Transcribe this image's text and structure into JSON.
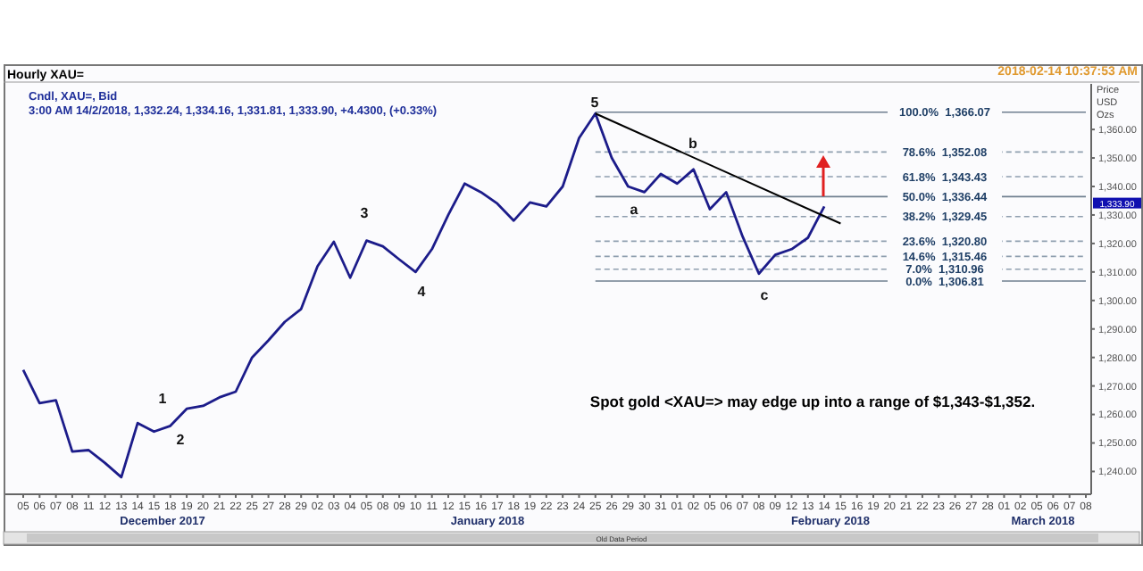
{
  "chart_data": {
    "type": "line",
    "title": "Hourly XAU=",
    "subtitle": "Cndl, XAU=, Bid",
    "ylabel": "Price USD Ozs",
    "annotations": [
      "3:00 AM 14/2/2018, 1,332.24, 1,334.16, 1,331.81, 1,333.90, +4.4300, (+0.33%)",
      "2018-02-14 10:37:53 AM",
      "Spot gold <XAU=> may edge up into a range of $1,343-$1,352.",
      "Old Data Period",
      "December 2017",
      "January 2018",
      "February 2018",
      "March 2018",
      "1",
      "2",
      "3",
      "4",
      "5",
      "a",
      "b",
      "c",
      "1,333.90"
    ],
    "categories": [
      "05",
      "06",
      "07",
      "08",
      "11",
      "12",
      "13",
      "14",
      "15",
      "18",
      "19",
      "20",
      "21",
      "22",
      "25",
      "27",
      "28",
      "29",
      "02",
      "03",
      "04",
      "05",
      "08",
      "09",
      "10",
      "11",
      "12",
      "15",
      "16",
      "17",
      "18",
      "19",
      "22",
      "23",
      "24",
      "25",
      "26",
      "29",
      "30",
      "31",
      "01",
      "02",
      "05",
      "06",
      "07",
      "08",
      "09",
      "12",
      "13",
      "14",
      "15",
      "16",
      "19",
      "20",
      "21",
      "22",
      "23",
      "26",
      "27",
      "28",
      "01",
      "02",
      "05",
      "06",
      "07",
      "08"
    ],
    "ylim": [
      1232,
      1376
    ],
    "yticks": [
      {
        "value": 1240,
        "label": "1,240.00"
      },
      {
        "value": 1250,
        "label": "1,250.00"
      },
      {
        "value": 1260,
        "label": "1,260.00"
      },
      {
        "value": 1270,
        "label": "1,270.00"
      },
      {
        "value": 1280,
        "label": "1,280.00"
      },
      {
        "value": 1290,
        "label": "1,290.00"
      },
      {
        "value": 1300,
        "label": "1,300.00"
      },
      {
        "value": 1310,
        "label": "1,310.00"
      },
      {
        "value": 1320,
        "label": "1,320.00"
      },
      {
        "value": 1330,
        "label": "1,330.00"
      },
      {
        "value": 1340,
        "label": "1,340.00"
      },
      {
        "value": 1350,
        "label": "1,350.00"
      },
      {
        "value": 1360,
        "label": "1,360.00"
      }
    ],
    "series": [
      {
        "color": "#1c1c8a",
        "values": [
          1275.6,
          1264,
          1265,
          1247,
          1247.5,
          1243,
          1238,
          1257,
          1254,
          1256,
          1262,
          1263,
          1266,
          1268,
          1280,
          1286,
          1292.5,
          1297,
          1312,
          1320.6,
          1308,
          1321,
          1319,
          1314.4,
          1310,
          1318,
          1330,
          1341,
          1338,
          1334,
          1328,
          1334.4,
          1333,
          1340,
          1357,
          1365.6,
          1350,
          1340,
          1338,
          1344.4,
          1341,
          1346,
          1332,
          1338,
          1322.5,
          1309.4,
          1316,
          1318,
          1322,
          1333,
          null,
          null,
          null,
          null,
          null,
          null,
          null,
          null,
          null,
          null,
          null,
          null,
          null,
          null,
          null,
          null
        ]
      },
      {
        "type": "line",
        "color": "#000000",
        "values": [
          null,
          null,
          null,
          null,
          null,
          null,
          null,
          null,
          null,
          null,
          null,
          null,
          null,
          null,
          null,
          null,
          null,
          null,
          null,
          null,
          null,
          null,
          null,
          null,
          null,
          null,
          null,
          null,
          null,
          null,
          null,
          null,
          null,
          null,
          null,
          1365.6,
          null,
          null,
          null,
          null,
          null,
          null,
          null,
          null,
          null,
          null,
          null,
          null,
          null,
          null,
          1327,
          null,
          null,
          null,
          null,
          null,
          null,
          null,
          null,
          null,
          null,
          null,
          null,
          null,
          null,
          null
        ]
      }
    ],
    "ref_lines": [
      {
        "axis": "y",
        "value": 1366.07,
        "label": "100.0%  1,366.07",
        "color": "#6f7f8f",
        "line_style": "solid"
      },
      {
        "axis": "y",
        "value": 1352.08,
        "label": "78.6%  1,352.08",
        "color": "#8f9faf",
        "line_style": "dashed"
      },
      {
        "axis": "y",
        "value": 1343.43,
        "label": "61.8%  1,343.43",
        "color": "#8f9faf",
        "line_style": "dashed"
      },
      {
        "axis": "y",
        "value": 1336.44,
        "label": "50.0%  1,336.44",
        "color": "#6f7f8f",
        "line_style": "solid"
      },
      {
        "axis": "y",
        "value": 1329.45,
        "label": "38.2%  1,329.45",
        "color": "#8f9faf",
        "line_style": "dashed"
      },
      {
        "axis": "y",
        "value": 1320.8,
        "label": "23.6%  1,320.80",
        "color": "#8f9faf",
        "line_style": "dashed"
      },
      {
        "axis": "y",
        "value": 1315.46,
        "label": "14.6%  1,315.46",
        "color": "#8f9faf",
        "line_style": "dashed"
      },
      {
        "axis": "y",
        "value": 1310.96,
        "label": "7.0%  1,310.96",
        "color": "#8f9faf",
        "line_style": "dashed"
      },
      {
        "axis": "y",
        "value": 1306.81,
        "label": "0.0%  1,306.81",
        "color": "#6f7f8f",
        "line_style": "solid"
      }
    ]
  }
}
